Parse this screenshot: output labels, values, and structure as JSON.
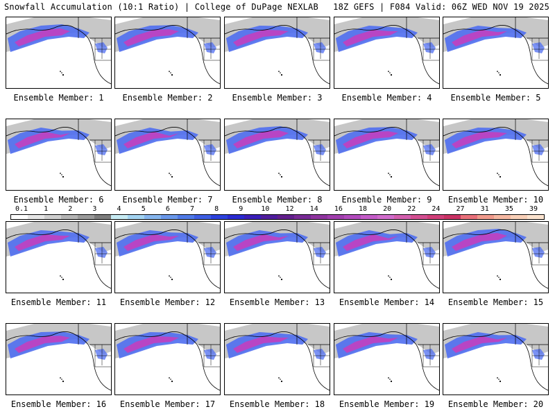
{
  "header": {
    "title": "Snowfall Accumulation (10:1 Ratio) | College of DuPage NEXLAB",
    "run_info": "18Z GEFS | F084 Valid: 06Z WED NOV 19 2025"
  },
  "map": {
    "region": "Northeast Pacific / Alaska / Western North America",
    "colors": {
      "background": "#ffffff",
      "boundary": "#000000",
      "snow_light": "#bdbdbd",
      "snow_mid": "#4f6ef0",
      "snow_heavy": "#c23fc0"
    }
  },
  "members": [
    {
      "label": "Ensemble Member: 1"
    },
    {
      "label": "Ensemble Member: 2"
    },
    {
      "label": "Ensemble Member: 3"
    },
    {
      "label": "Ensemble Member: 4"
    },
    {
      "label": "Ensemble Member: 5"
    },
    {
      "label": "Ensemble Member: 6"
    },
    {
      "label": "Ensemble Member: 7"
    },
    {
      "label": "Ensemble Member: 8"
    },
    {
      "label": "Ensemble Member: 9"
    },
    {
      "label": "Ensemble Member: 10"
    },
    {
      "label": "Ensemble Member: 11"
    },
    {
      "label": "Ensemble Member: 12"
    },
    {
      "label": "Ensemble Member: 13"
    },
    {
      "label": "Ensemble Member: 14"
    },
    {
      "label": "Ensemble Member: 15"
    },
    {
      "label": "Ensemble Member: 16"
    },
    {
      "label": "Ensemble Member: 17"
    },
    {
      "label": "Ensemble Member: 18"
    },
    {
      "label": "Ensemble Member: 19"
    },
    {
      "label": "Ensemble Member: 20"
    }
  ],
  "colorbar": {
    "ticks": [
      "0.1",
      "1",
      "2",
      "3",
      "4",
      "5",
      "6",
      "7",
      "8",
      "9",
      "10",
      "12",
      "14",
      "16",
      "18",
      "20",
      "22",
      "24",
      "27",
      "31",
      "35",
      "39"
    ],
    "colors": [
      "#ffffff",
      "#e6e6e6",
      "#cfcfcf",
      "#b4b4b4",
      "#9a9a9a",
      "#7d7d7d",
      "#c8ecf4",
      "#a4d4f2",
      "#86b6ee",
      "#6a98ea",
      "#507ae6",
      "#3e5ee2",
      "#2d42dc",
      "#2a2bd0",
      "#3a1fb8",
      "#4f1d9c",
      "#621f8c",
      "#782a95",
      "#8f359f",
      "#a13fae",
      "#b24bbd",
      "#c45cc8",
      "#d16ccc",
      "#d35fae",
      "#d34f91",
      "#d13f79",
      "#c93264",
      "#e8707a",
      "#f09a8c",
      "#f5b8a2",
      "#f8d0b8",
      "#fbe3cf"
    ]
  }
}
